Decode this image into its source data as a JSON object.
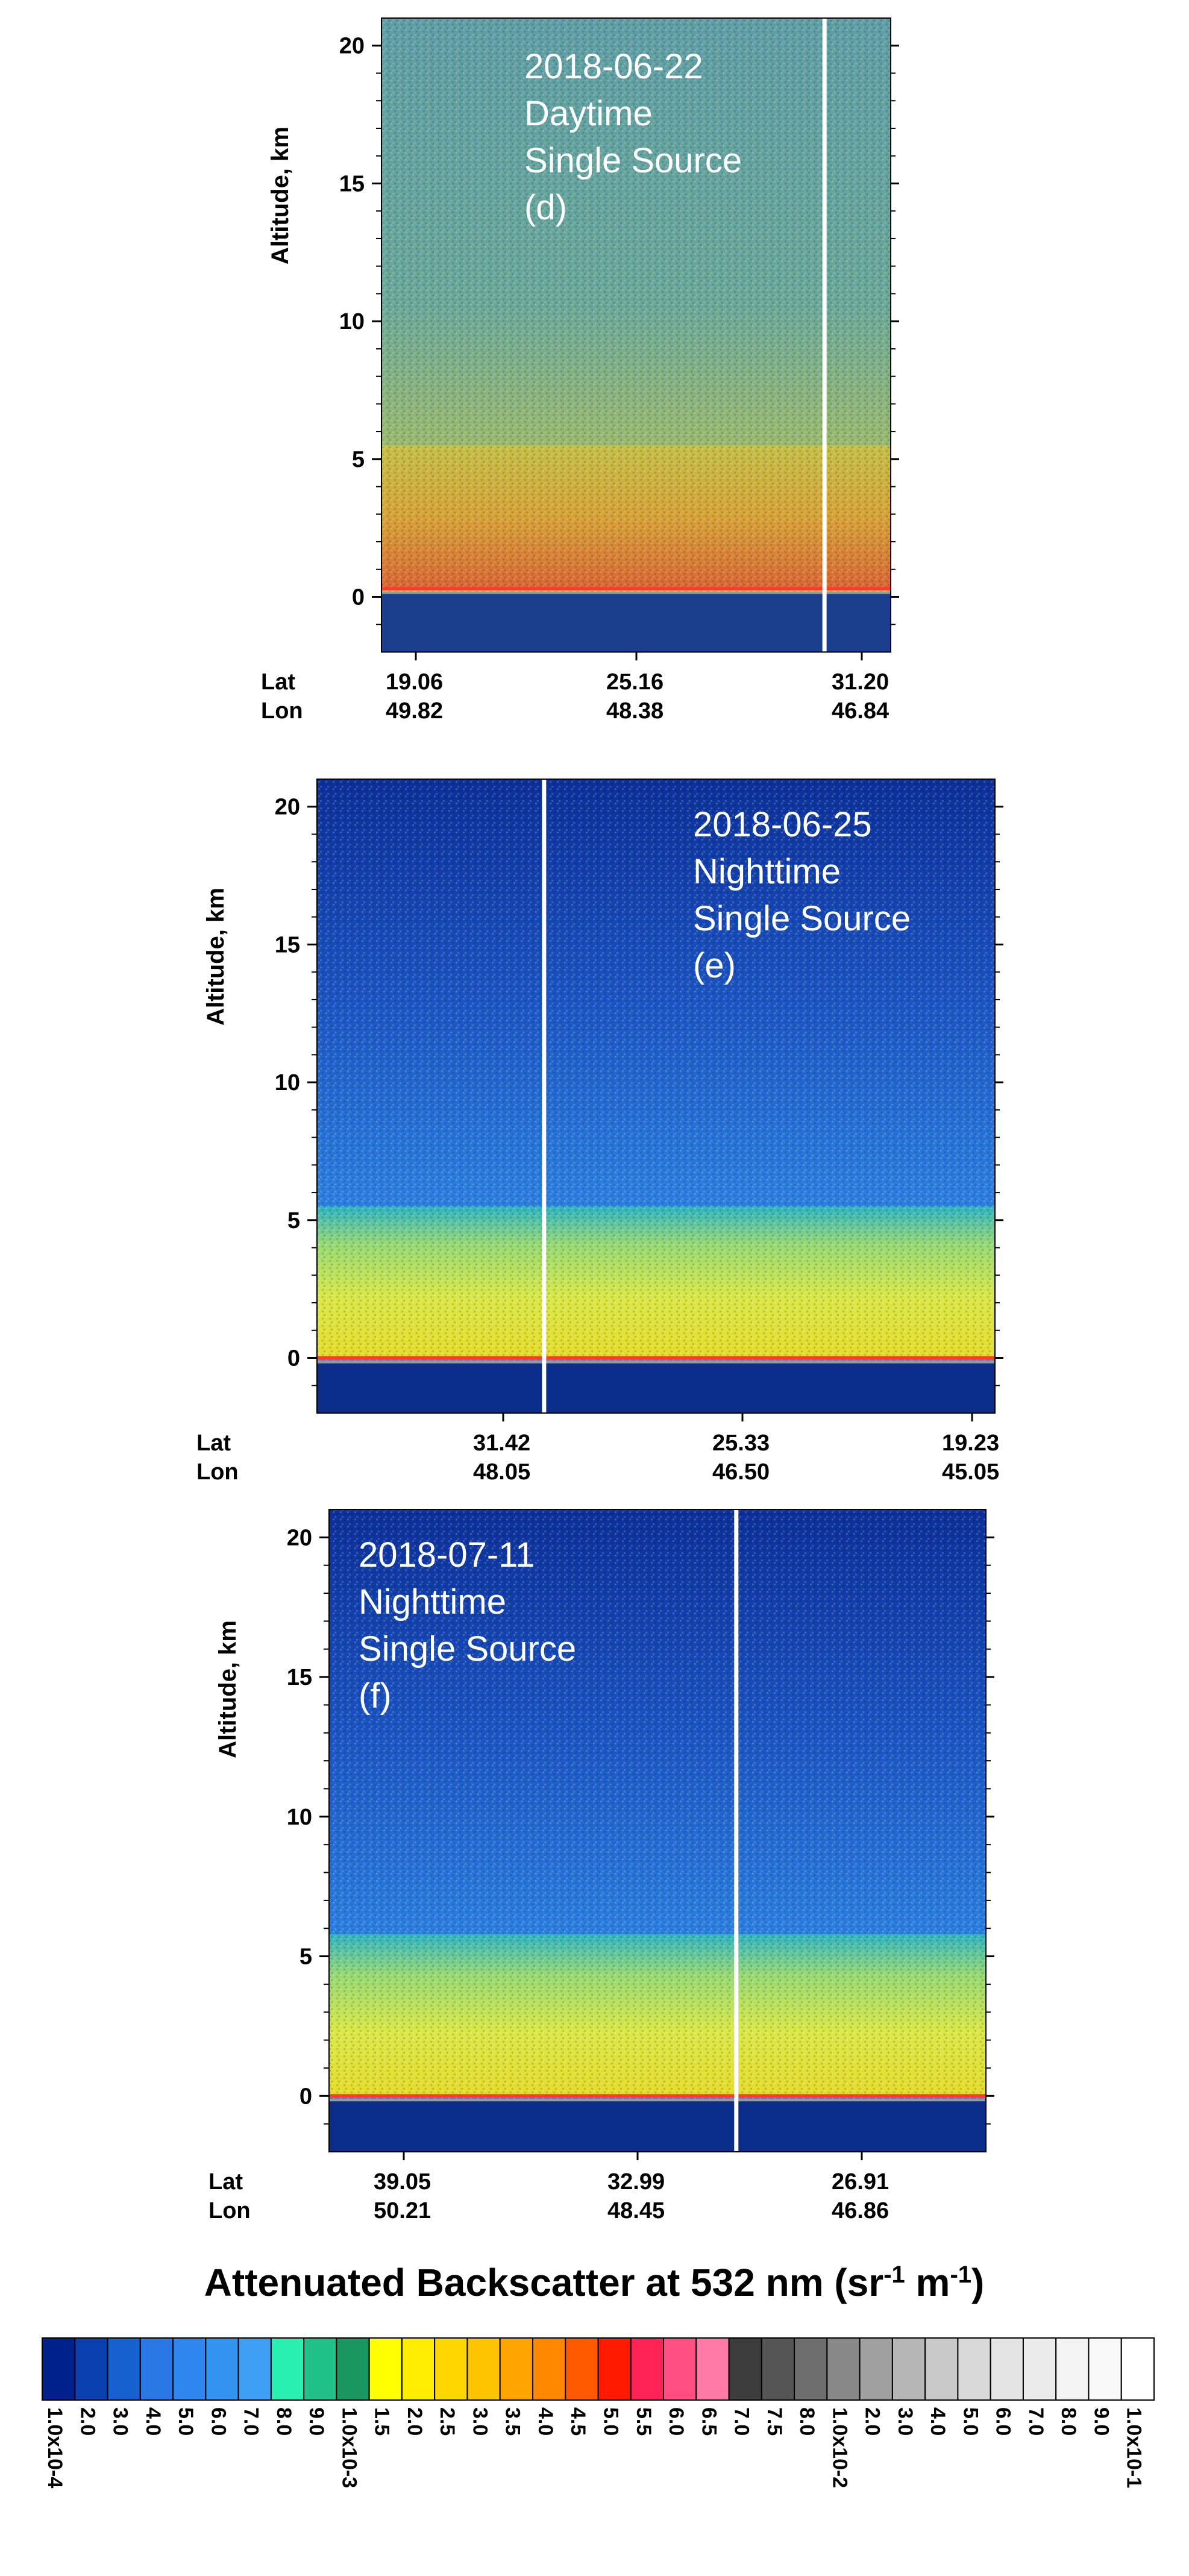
{
  "chart_data": [
    {
      "type": "heatmap",
      "annotation": [
        "2018-06-22",
        "Daytime",
        "Single Source",
        "(d)"
      ],
      "ylabel": "Altitude, km",
      "yticks": [
        0,
        5,
        10,
        15,
        20
      ],
      "ylim": [
        -2,
        21
      ],
      "xrow_labels": [
        "Lat",
        "Lon"
      ],
      "xticks": [
        {
          "lat": "19.06",
          "lon": "49.82"
        },
        {
          "lat": "25.16",
          "lon": "48.38"
        },
        {
          "lat": "31.20",
          "lon": "46.84"
        }
      ],
      "theme": "daytime",
      "surface_km": 0.3,
      "aerosol_top_km": 5.5
    },
    {
      "type": "heatmap",
      "annotation": [
        "2018-06-25",
        "Nighttime",
        "Single Source",
        "(e)"
      ],
      "ylabel": "Altitude, km",
      "yticks": [
        0,
        5,
        10,
        15,
        20
      ],
      "ylim": [
        -2,
        21
      ],
      "xrow_labels": [
        "Lat",
        "Lon"
      ],
      "xticks": [
        {
          "lat": "31.42",
          "lon": "48.05"
        },
        {
          "lat": "25.33",
          "lon": "46.50"
        },
        {
          "lat": "19.23",
          "lon": "45.05"
        }
      ],
      "theme": "nighttime",
      "surface_km": 0.0,
      "aerosol_top_km": 5.5
    },
    {
      "type": "heatmap",
      "annotation": [
        "2018-07-11",
        "Nighttime",
        "Single Source",
        "(f)"
      ],
      "ylabel": "Altitude, km",
      "yticks": [
        0,
        5,
        10,
        15,
        20
      ],
      "ylim": [
        -2,
        21
      ],
      "xrow_labels": [
        "Lat",
        "Lon"
      ],
      "xticks": [
        {
          "lat": "39.05",
          "lon": "50.21"
        },
        {
          "lat": "32.99",
          "lon": "48.45"
        },
        {
          "lat": "26.91",
          "lon": "46.86"
        }
      ],
      "theme": "nighttime",
      "surface_km": 0.0,
      "aerosol_top_km": 5.8
    }
  ],
  "colorbar": {
    "title": "Attenuated Backscatter at 532 nm (sr",
    "title_sup1": "-1",
    "title_mid": " m",
    "title_sup2": "-1",
    "title_end": ")",
    "labels": [
      "1.0x10-4",
      "2.0",
      "3.0",
      "4.0",
      "5.0",
      "6.0",
      "7.0",
      "8.0",
      "9.0",
      "1.0x10-3",
      "1.5",
      "2.0",
      "2.5",
      "3.0",
      "3.5",
      "4.0",
      "4.5",
      "5.0",
      "5.5",
      "6.0",
      "6.5",
      "7.0",
      "7.5",
      "8.0",
      "1.0x10-2",
      "2.0",
      "3.0",
      "4.0",
      "5.0",
      "6.0",
      "7.0",
      "8.0",
      "9.0",
      "1.0x10-1"
    ],
    "colors": [
      "#00218c",
      "#0a3fb0",
      "#1660d0",
      "#2a78e6",
      "#2e86ee",
      "#3394f2",
      "#3ea0f5",
      "#29f0b0",
      "#20c089",
      "#1a9660",
      "#ffff00",
      "#ffee00",
      "#ffd700",
      "#ffc400",
      "#ffa500",
      "#ff8800",
      "#ff5a00",
      "#ff1a00",
      "#ff2455",
      "#ff4f82",
      "#ff7aa6",
      "#3c3c3c",
      "#555555",
      "#6e6e6e",
      "#888888",
      "#a0a0a0",
      "#b6b6b6",
      "#c9c9c9",
      "#d9d9d9",
      "#e4e4e4",
      "#ececec",
      "#f3f3f3",
      "#f9f9f9",
      "#ffffff"
    ]
  }
}
